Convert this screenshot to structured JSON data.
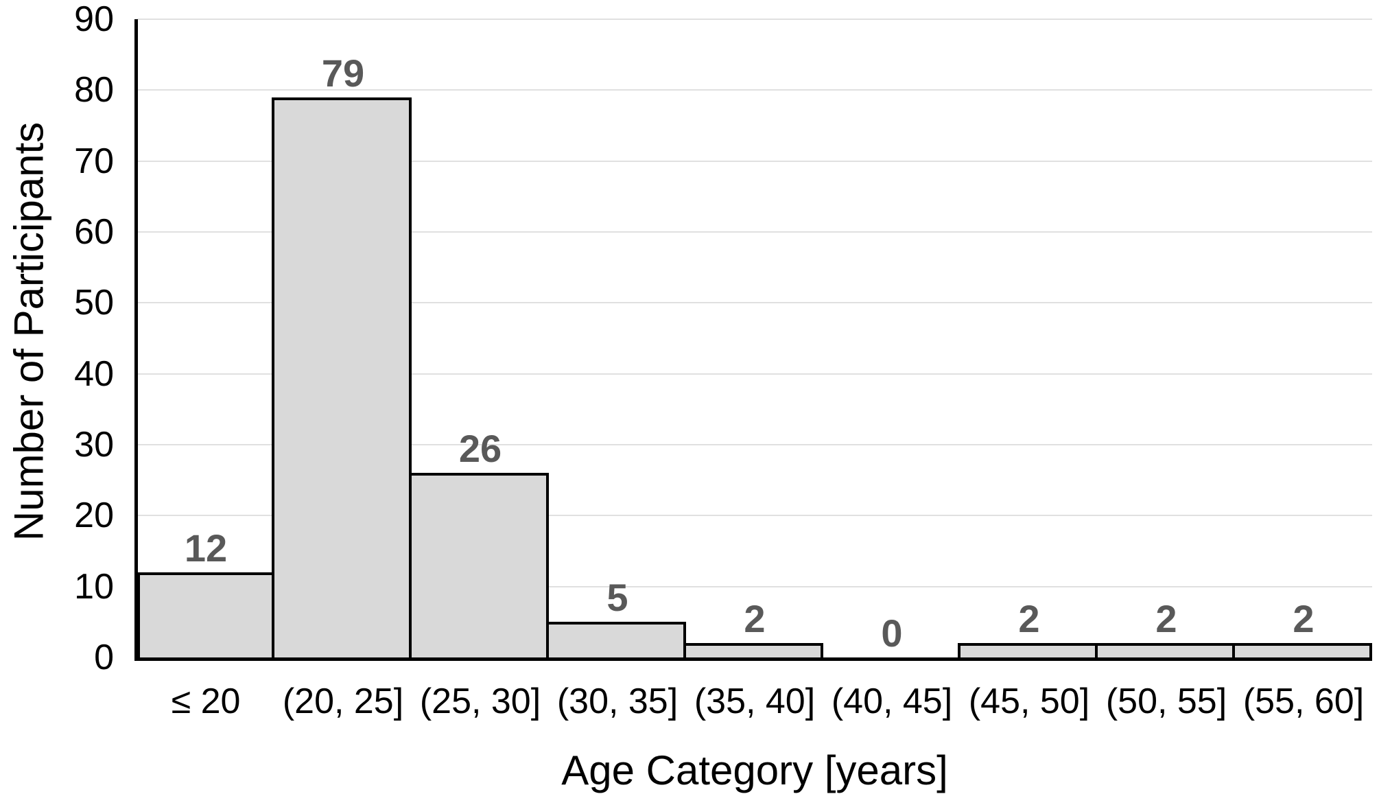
{
  "chart_data": {
    "type": "bar",
    "subtype": "histogram",
    "title": "",
    "categories": [
      "≤ 20",
      "(20, 25]",
      "(25, 30]",
      "(30, 35]",
      "(35, 40]",
      "(40, 45]",
      "(45, 50]",
      "(50, 55]",
      "(55, 60]"
    ],
    "values": [
      12,
      79,
      26,
      5,
      2,
      0,
      2,
      2,
      2
    ],
    "xlabel": "Age Category [years]",
    "ylabel": "Number of Participants",
    "ylim": [
      0,
      90
    ],
    "yticks": [
      0,
      10,
      20,
      30,
      40,
      50,
      60,
      70,
      80,
      90
    ],
    "grid": "horizontal",
    "legend": "none",
    "bar_gap": 0,
    "colors": {
      "background": "#ffffff",
      "bar_fill": "#d9d9d9",
      "bar_border": "#000000",
      "gridline": "#e0e0e0",
      "axis_line": "#000000",
      "value_label": "#595959",
      "tick_label": "#000000"
    }
  }
}
